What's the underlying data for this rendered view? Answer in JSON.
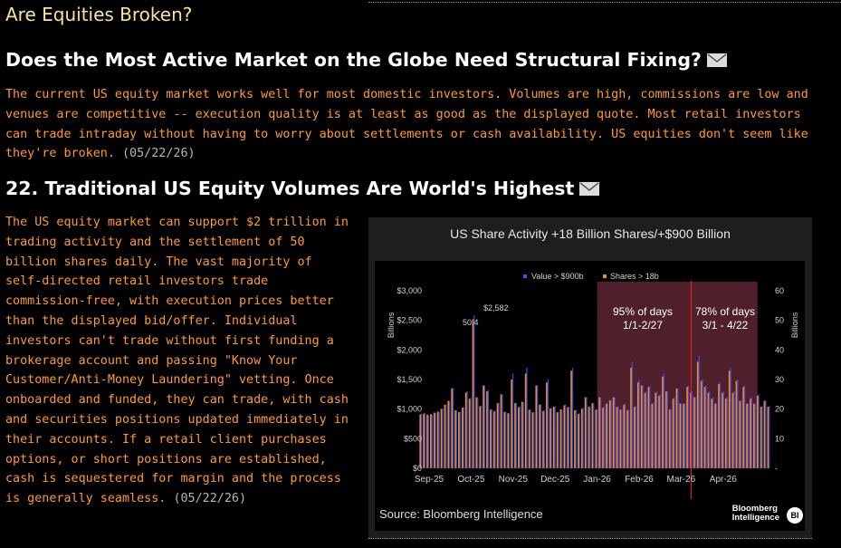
{
  "header": {
    "section_title": "Are Equities Broken?"
  },
  "story1": {
    "headline": "Does the Most Active Market on the Globe Need Structural Fixing?",
    "body": "The current US equity market works well for most domestic investors. Volumes are high, commissions are low and venues are competitive -- execution quality is at least as good as the displayed quote. Most retail investors can trade intraday without having to worry about settlements or cash availability. US equities don't seem like they're broken.",
    "date": "(05/22/26)"
  },
  "story2": {
    "headline": "22. Traditional US Equity Volumes Are World's Highest",
    "body": "The US equity market can support $2 trillion in trading activity and the settlement of 50 billion shares daily. The vast majority of self-directed retail investors trade commission-free, with execution prices better than the displayed bid/offer. Individual investors can't trade without first funding a brokerage account and passing \"Know Your Customer/Anti-Money Laundering\" vetting. Once onboarded and funded, they can trade, with cash and securities positions updated immediately in their accounts. If a retail client purchases options, or short positions are established, cash is sequestered for margin and the process is generally seamless.",
    "date": "(05/22/26)"
  },
  "chart": {
    "source": "Source: Bloomberg Intelligence",
    "logo_line1": "Bloomberg",
    "logo_line2": "Intelligence",
    "badge": "BI"
  },
  "icons": {
    "headline_icon": "envelope-icon"
  },
  "colors": {
    "value_series": "#3355ff",
    "shares_series": "#f08c28",
    "highlight": "#6a2a3a",
    "marker_line": "#ff2020",
    "body_text": "#ff9a2e",
    "section_title": "#f5e59a"
  },
  "chart_data": {
    "type": "bar",
    "title": "US Share Activity +18 Billion Shares/+$900 Billion",
    "x_tick_labels": [
      "Sep-25",
      "Oct-25",
      "Nov-25",
      "Dec-25",
      "Jan-26",
      "Feb-26",
      "Mar-26",
      "Apr-26"
    ],
    "ylabel": "Billions",
    "ylabel_right": "Billions",
    "left_axis": {
      "ticks": [
        "$0",
        "$500",
        "$1,000",
        "$1,500",
        "$2,000",
        "$2,500",
        "$3,000"
      ],
      "ylim": [
        0,
        3000
      ]
    },
    "right_axis": {
      "ticks": [
        "-",
        "10",
        "20",
        "30",
        "40",
        "50",
        "60"
      ],
      "ylim": [
        0,
        60
      ]
    },
    "series": [
      {
        "name": "Value > $900b",
        "axis": "left",
        "values": [
          920,
          930,
          900,
          910,
          940,
          950,
          1010,
          1080,
          1140,
          1360,
          980,
          960,
          1040,
          1300,
          1190,
          2582,
          1200,
          1060,
          1400,
          1320,
          1000,
          980,
          1100,
          1250,
          960,
          930,
          1600,
          1100,
          1050,
          1120,
          1700,
          1000,
          950,
          1400,
          1080,
          980,
          1500,
          1020,
          1050,
          950,
          1000,
          1080,
          1040,
          1700,
          990,
          930,
          1020,
          1200,
          1050,
          1100,
          1000,
          1200,
          1040,
          1100,
          1150,
          1200,
          1050,
          1000,
          1100,
          990,
          1800,
          1050,
          1500,
          1400,
          1300,
          1400,
          1100,
          1300,
          1250,
          1600,
          1300,
          1000,
          1200,
          1350,
          1100,
          1100,
          1400,
          1300,
          1200,
          1900,
          1500,
          1400,
          1300,
          1200,
          1100,
          1450,
          1300,
          1200,
          1700,
          1300,
          1500,
          1150,
          1400,
          1100,
          1200,
          1100,
          1250,
          1050,
          1150,
          1050
        ]
      },
      {
        "name": "Shares > 18b",
        "axis": "right",
        "values": [
          18.2,
          18.5,
          18.1,
          18.3,
          18.8,
          19.2,
          20.1,
          21.5,
          22.8,
          27.0,
          19.6,
          19.0,
          20.5,
          25.6,
          23.5,
          50.4,
          24.0,
          21.0,
          28.0,
          26.0,
          19.8,
          19.2,
          22.0,
          25.0,
          19.0,
          18.6,
          30.0,
          22.0,
          20.6,
          22.5,
          32.0,
          19.8,
          18.9,
          28.0,
          21.5,
          19.4,
          29.0,
          20.2,
          20.8,
          18.9,
          19.9,
          21.3,
          20.6,
          33.0,
          19.6,
          18.4,
          20.1,
          24.0,
          20.8,
          22.0,
          19.8,
          24.0,
          20.5,
          21.8,
          23.0,
          24.0,
          20.7,
          19.8,
          21.5,
          19.6,
          34.0,
          20.8,
          29.0,
          28.0,
          25.5,
          27.5,
          21.8,
          25.5,
          24.5,
          31.0,
          26.0,
          19.8,
          23.5,
          27.0,
          21.9,
          21.8,
          27.5,
          25.5,
          24.0,
          36.0,
          29.5,
          27.5,
          25.5,
          23.5,
          21.8,
          28.5,
          25.5,
          23.5,
          33.0,
          25.5,
          29.5,
          22.8,
          27.5,
          21.8,
          23.5,
          21.8,
          24.5,
          20.8,
          22.8,
          20.8
        ]
      }
    ],
    "annotations": [
      {
        "text": "$2,582"
      },
      {
        "text": "50.4"
      },
      {
        "text": [
          "95% of days",
          "1/1-2/27"
        ]
      },
      {
        "text": [
          "78% of days",
          "3/1 - 4/22"
        ]
      }
    ],
    "shaded_period": [
      "Jan-26",
      "Apr-26"
    ],
    "marker_line": "Mar-26",
    "legend_position": "top"
  }
}
